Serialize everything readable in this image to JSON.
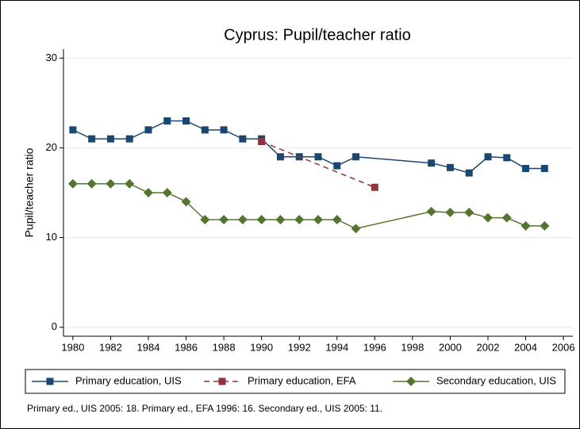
{
  "chart_data": {
    "type": "line",
    "title": "Cyprus: Pupil/teacher ratio",
    "y_label": "Pupil/teacher ratio",
    "note": "Primary ed., UIS 2005: 18. Primary ed., EFA 1996: 16. Secondary ed., UIS 2005: 11.",
    "xlim": [
      1979.5,
      2006.5
    ],
    "xticks": [
      1980,
      1982,
      1984,
      1986,
      1988,
      1990,
      1992,
      1994,
      1996,
      1998,
      2000,
      2002,
      2004,
      2006
    ],
    "ylim": [
      -1,
      31
    ],
    "yticks": [
      0,
      10,
      20,
      30
    ],
    "grid": true,
    "legend": "bottom",
    "series": [
      {
        "name": "Primary education, UIS",
        "color": "#1a476f",
        "marker": "square",
        "line_style": "solid",
        "x": [
          1980,
          1981,
          1982,
          1983,
          1984,
          1985,
          1986,
          1987,
          1988,
          1989,
          1990,
          1991,
          1992,
          1993,
          1994,
          1995,
          1999,
          2000,
          2001,
          2002,
          2003,
          2004,
          2005
        ],
        "values": [
          22,
          21,
          21,
          21,
          22,
          23,
          23,
          22,
          22,
          21,
          21,
          19,
          19,
          19,
          18,
          19,
          18.3,
          17.8,
          17.2,
          19,
          18.9,
          17.7,
          17.7
        ]
      },
      {
        "name": "Primary education, EFA",
        "color": "#90353b",
        "marker": "square",
        "line_style": "dashed",
        "x": [
          1990,
          1996
        ],
        "values": [
          20.7,
          15.6
        ]
      },
      {
        "name": "Secondary education, UIS",
        "color": "#55752f",
        "marker": "diamond",
        "line_style": "solid",
        "x": [
          1980,
          1981,
          1982,
          1983,
          1984,
          1985,
          1986,
          1987,
          1988,
          1989,
          1990,
          1991,
          1992,
          1993,
          1994,
          1995,
          1999,
          2000,
          2001,
          2002,
          2003,
          2004,
          2005
        ],
        "values": [
          16,
          16,
          16,
          16,
          15,
          15,
          14,
          12,
          12,
          12,
          12,
          12,
          12,
          12,
          12,
          11,
          12.9,
          12.8,
          12.8,
          12.2,
          12.2,
          11.3,
          11.3
        ]
      }
    ]
  }
}
